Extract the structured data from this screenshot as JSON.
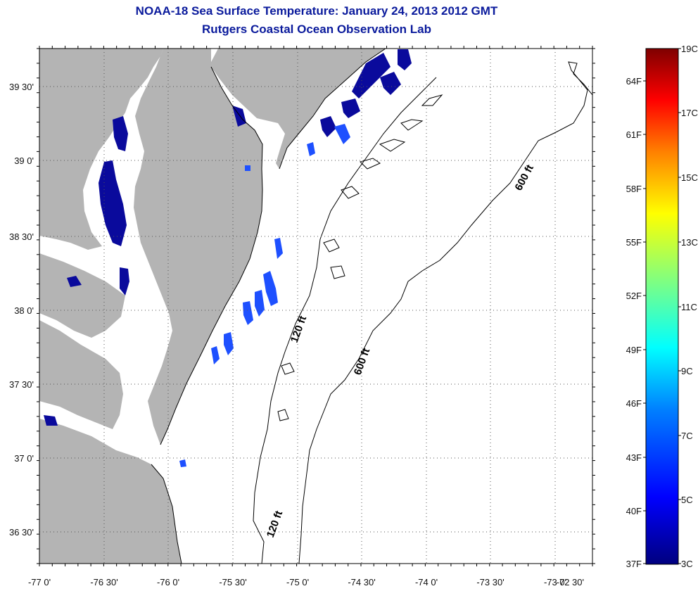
{
  "header": {
    "title": "NOAA-18 Sea Surface Temperature:  January 24, 2013 2012 GMT",
    "subtitle": "Rutgers Coastal Ocean Observation Lab"
  },
  "map": {
    "lon_labels": [
      "-77 0'",
      "-76 30'",
      "-76 0'",
      "-75 30'",
      "-75 0'",
      "-74 30'",
      "-74 0'",
      "-73 30'",
      "-73 0'",
      "-72 30'"
    ],
    "lat_labels": [
      "39 30'",
      "39 0'",
      "38 30'",
      "38 0'",
      "37 30'",
      "37 0'",
      "36 30'"
    ],
    "contours": [
      {
        "label": "600 ft"
      },
      {
        "label": "600 ft"
      },
      {
        "label": "120 ft"
      },
      {
        "label": "120 ft"
      }
    ],
    "colors": {
      "land": "#b4b4b4",
      "cold_water": "#0a0a9c",
      "cool_water": "#1e50ff",
      "frame": "#000000"
    }
  },
  "colorbar": {
    "celsius_labels": [
      "19C",
      "17C",
      "15C",
      "13C",
      "11C",
      "9C",
      "7C",
      "5C",
      "3C"
    ],
    "fahrenheit_labels": [
      "64F",
      "61F",
      "58F",
      "55F",
      "52F",
      "49F",
      "46F",
      "43F",
      "40F",
      "37F"
    ],
    "colors": [
      "#7f0000",
      "#ff0000",
      "#ff8000",
      "#ffff00",
      "#80ff80",
      "#00ffff",
      "#0080ff",
      "#0000ff",
      "#00007f"
    ]
  }
}
